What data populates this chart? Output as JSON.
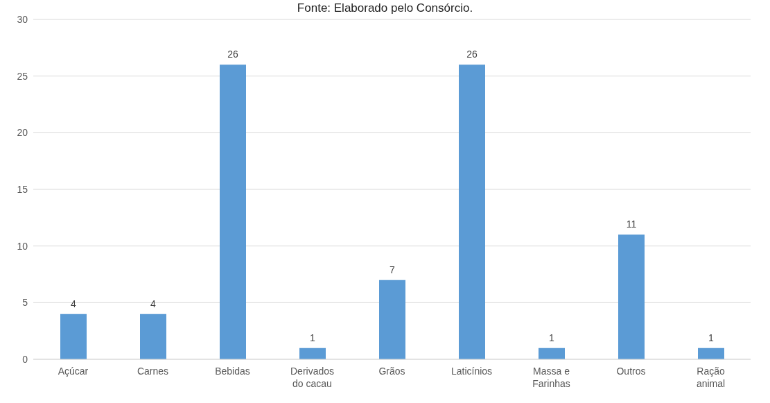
{
  "chart_data": {
    "type": "bar",
    "annotations": [
      "Fonte: Elaborado pelo Consórcio."
    ],
    "categories": [
      "Açúcar",
      "Carnes",
      "Bebidas",
      "Derivados do cacau",
      "Grãos",
      "Laticínios",
      "Massa e Farinhas",
      "Outros",
      "Ração animal"
    ],
    "values": [
      4,
      4,
      26,
      1,
      7,
      26,
      1,
      11,
      1
    ],
    "color": "#5b9bd5",
    "ylim": [
      0,
      30
    ],
    "yticks": [
      0,
      5,
      10,
      15,
      20,
      25,
      30
    ],
    "grid": "y",
    "data_labels": true
  }
}
